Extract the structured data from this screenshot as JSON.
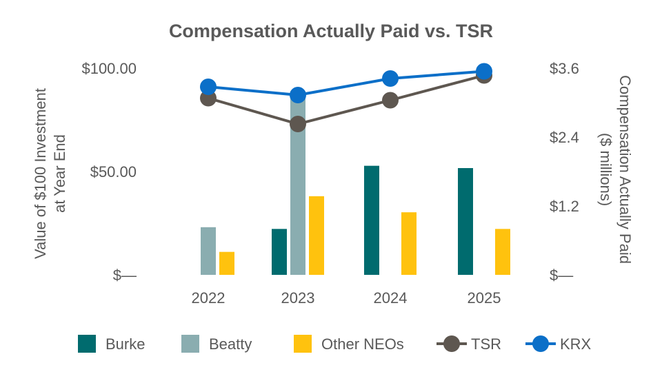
{
  "chart_data": {
    "type": "bar",
    "title": "Compensation Actually Paid vs. TSR",
    "categories": [
      "2022",
      "2023",
      "2024",
      "2025"
    ],
    "left_axis": {
      "label_lines": [
        "Value of $100 Investment",
        "at Year End"
      ],
      "ylim": [
        0,
        100
      ],
      "ticks": [
        0,
        50,
        100
      ],
      "tick_labels": [
        "$—",
        "$50.00",
        "$100.00"
      ]
    },
    "right_axis": {
      "label_lines": [
        "Compensation Actually Paid",
        "($ millions)"
      ],
      "ylim": [
        0,
        3.6
      ],
      "ticks": [
        0,
        1.2,
        2.4,
        3.6
      ],
      "tick_labels": [
        "$—",
        "$1.2",
        "$2.4",
        "$3.6"
      ]
    },
    "bar_series": [
      {
        "name": "Burke",
        "color": "#006B6E",
        "axis": "right",
        "values": [
          null,
          0.8,
          1.9,
          1.86
        ]
      },
      {
        "name": "Beatty",
        "color": "#8AADB0",
        "axis": "right",
        "values": [
          0.83,
          3.2,
          null,
          null
        ]
      },
      {
        "name": "Other NEOs",
        "color": "#FFC20E",
        "axis": "right",
        "values": [
          0.4,
          1.37,
          1.09,
          0.8
        ]
      }
    ],
    "line_series": [
      {
        "name": "TSR",
        "color": "#5E5750",
        "axis": "left",
        "values": [
          85.5,
          73,
          84.5,
          96.5
        ]
      },
      {
        "name": "KRX",
        "color": "#0B6FC8",
        "axis": "left",
        "values": [
          91,
          87,
          95,
          98.5
        ]
      }
    ],
    "legend_position": "bottom",
    "grid": false
  }
}
